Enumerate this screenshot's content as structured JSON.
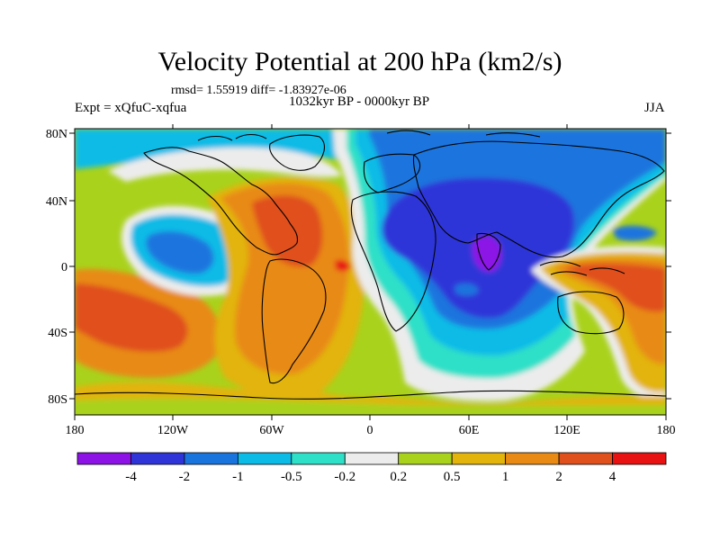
{
  "header": {
    "title": "Velocity Potential at 200 hPa (km2/s)",
    "stats": "rmsd= 1.55919 diff= -1.83927e-06",
    "experiment": "Expt = xQfuC-xqfua",
    "period": "1032kyr BP - 0000kyr BP",
    "season": "JJA"
  },
  "axes": {
    "lat_labels": [
      "80N",
      "40N",
      "0",
      "40S",
      "80S"
    ],
    "lon_labels": [
      "180",
      "120W",
      "60W",
      "0",
      "60E",
      "120E",
      "180"
    ]
  },
  "colorbar": {
    "labels": [
      "-4",
      "-2",
      "-1",
      "-0.5",
      "-0.2",
      "0.2",
      "0.5",
      "1",
      "2",
      "4"
    ],
    "colors": [
      "#8c12e6",
      "#2f34d8",
      "#1a74de",
      "#0cbbe6",
      "#2ee0c8",
      "#ececec",
      "#a9d21c",
      "#e2b40c",
      "#e88a14",
      "#e0501c",
      "#e81212"
    ]
  },
  "field_colors": {
    "purple": "#8c12e6",
    "dark_blue": "#2f34d8",
    "blue": "#1a74de",
    "cyan": "#0cbbe6",
    "teal": "#2ee0c8",
    "white": "#ececec",
    "yellow_green": "#a9d21c",
    "gold": "#e2b40c",
    "orange": "#e88a14",
    "red_orange": "#e0501c",
    "red": "#e81212"
  }
}
